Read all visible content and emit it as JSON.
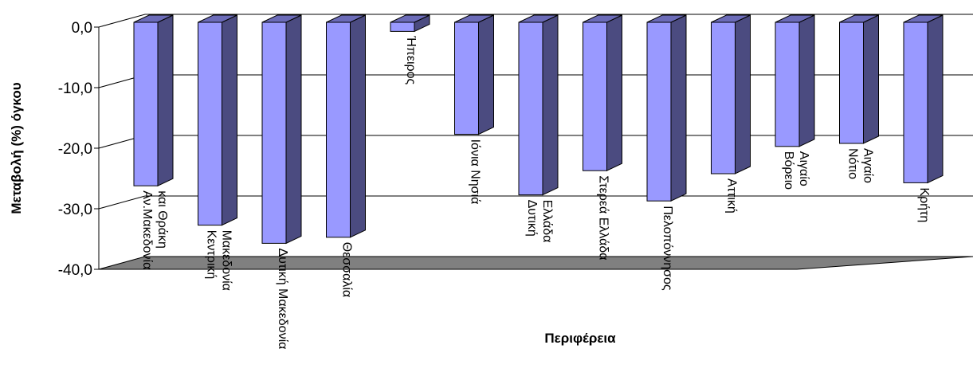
{
  "chart_data": {
    "type": "bar",
    "title": "",
    "xlabel": "Περιφέρεια",
    "ylabel": "Μεταβολή (%) όγκου",
    "ylim": [
      -40,
      0
    ],
    "yticks": [
      "0,0",
      "-10,0",
      "-20,0",
      "-30,0",
      "-40,0"
    ],
    "grid": true,
    "legend": "none",
    "style": "3d-column",
    "colors": {
      "bar_front": "#9999ff",
      "bar_side": "#4b4b80",
      "bar_top": "#6b6bb8",
      "floor": "#808080"
    },
    "categories": [
      [
        "Αν.Μακεδονία",
        "και Θράκη"
      ],
      [
        "Κεντρική",
        "Μακεδονία"
      ],
      [
        "Δυτική Μακεδονία"
      ],
      [
        "Θεσσαλία"
      ],
      [
        "Ήπειρος"
      ],
      [
        "Ιόνια Νησιά"
      ],
      [
        "Δυτική",
        "Ελλάδα"
      ],
      [
        "Στερεά Ελλάδα"
      ],
      [
        "Πελοπόννησος"
      ],
      [
        "Αττική"
      ],
      [
        "Βόρειο",
        "Αιγαίο"
      ],
      [
        "Νότιο",
        "Αιγαίο"
      ],
      [
        "Κρήτη"
      ]
    ],
    "values": [
      -27.0,
      -33.5,
      -36.5,
      -35.5,
      -1.5,
      -18.5,
      -28.5,
      -24.5,
      -29.5,
      -25.0,
      -20.5,
      -20.0,
      -26.5
    ]
  }
}
